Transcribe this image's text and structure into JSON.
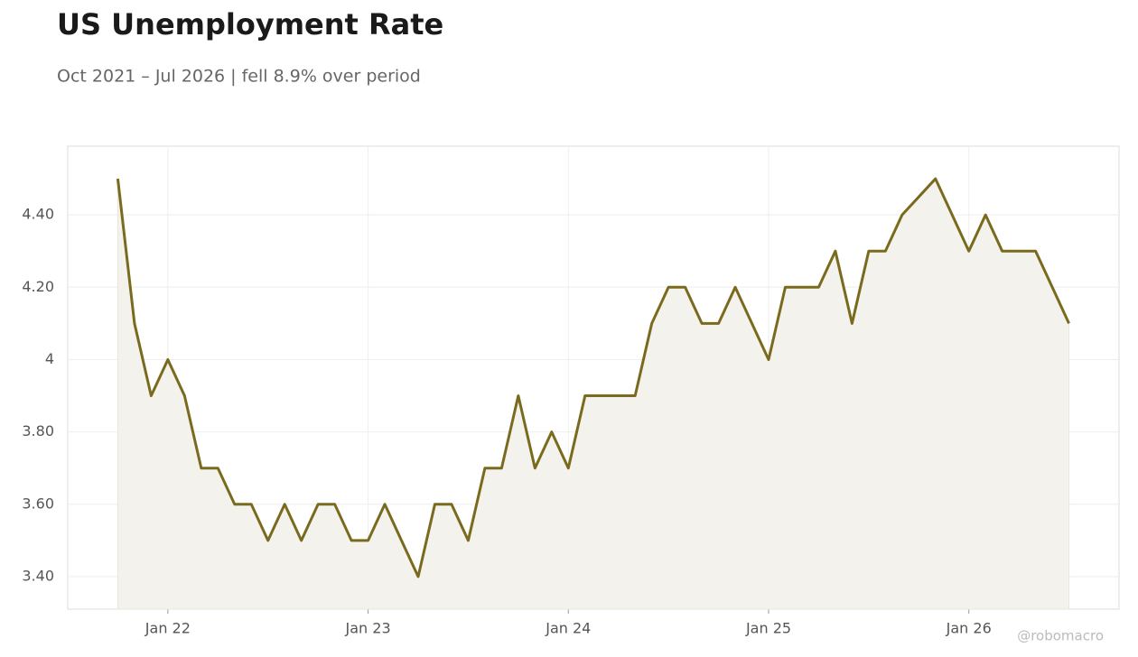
{
  "chart_data": {
    "type": "line",
    "title": "US Unemployment Rate",
    "subtitle": "Oct 2021 – Jul 2026 | fell 8.9% over period",
    "watermark": "@robomacro",
    "x": [
      "2021-10",
      "2021-11",
      "2021-12",
      "2022-01",
      "2022-02",
      "2022-03",
      "2022-04",
      "2022-05",
      "2022-06",
      "2022-07",
      "2022-08",
      "2022-09",
      "2022-10",
      "2022-11",
      "2022-12",
      "2023-01",
      "2023-02",
      "2023-03",
      "2023-04",
      "2023-05",
      "2023-06",
      "2023-07",
      "2023-08",
      "2023-09",
      "2023-10",
      "2023-11",
      "2023-12",
      "2024-01",
      "2024-02",
      "2024-03",
      "2024-04",
      "2024-05",
      "2024-06",
      "2024-07",
      "2024-08",
      "2024-09",
      "2024-10",
      "2024-11",
      "2024-12",
      "2025-01",
      "2025-02",
      "2025-03",
      "2025-04",
      "2025-05",
      "2025-06",
      "2025-07",
      "2025-08",
      "2025-09",
      "2025-11",
      "2025-12",
      "2026-01",
      "2026-02",
      "2026-03",
      "2026-04",
      "2026-05",
      "2026-06",
      "2026-07"
    ],
    "values": [
      4.5,
      4.1,
      3.9,
      4.0,
      3.9,
      3.7,
      3.7,
      3.6,
      3.6,
      3.5,
      3.6,
      3.5,
      3.6,
      3.6,
      3.5,
      3.5,
      3.6,
      3.5,
      3.4,
      3.6,
      3.6,
      3.5,
      3.7,
      3.7,
      3.9,
      3.7,
      3.8,
      3.7,
      3.9,
      3.9,
      3.9,
      3.9,
      4.1,
      4.2,
      4.2,
      4.1,
      4.1,
      4.2,
      4.1,
      4.0,
      4.2,
      4.2,
      4.2,
      4.3,
      4.1,
      4.3,
      4.3,
      4.4,
      4.5,
      4.4,
      4.3,
      4.4,
      4.3,
      4.3,
      4.3,
      4.2,
      4.1
    ],
    "color": "#7a6a1e",
    "fill": "#f3f2ec",
    "xlim": [
      "2021-07",
      "2026-10"
    ],
    "xticks": [
      {
        "value": "2022-01",
        "label": "Jan 22"
      },
      {
        "value": "2023-01",
        "label": "Jan 23"
      },
      {
        "value": "2024-01",
        "label": "Jan 24"
      },
      {
        "value": "2025-01",
        "label": "Jan 25"
      },
      {
        "value": "2026-01",
        "label": "Jan 26"
      }
    ],
    "ylim": [
      3.31,
      4.59
    ],
    "yticks": [
      {
        "value": 3.4,
        "label": "3.40"
      },
      {
        "value": 3.6,
        "label": "3.60"
      },
      {
        "value": 3.8,
        "label": "3.80"
      },
      4,
      {
        "value": 4.2,
        "label": "4.20"
      },
      {
        "value": 4.4,
        "label": "4.40"
      }
    ],
    "grid": true
  }
}
